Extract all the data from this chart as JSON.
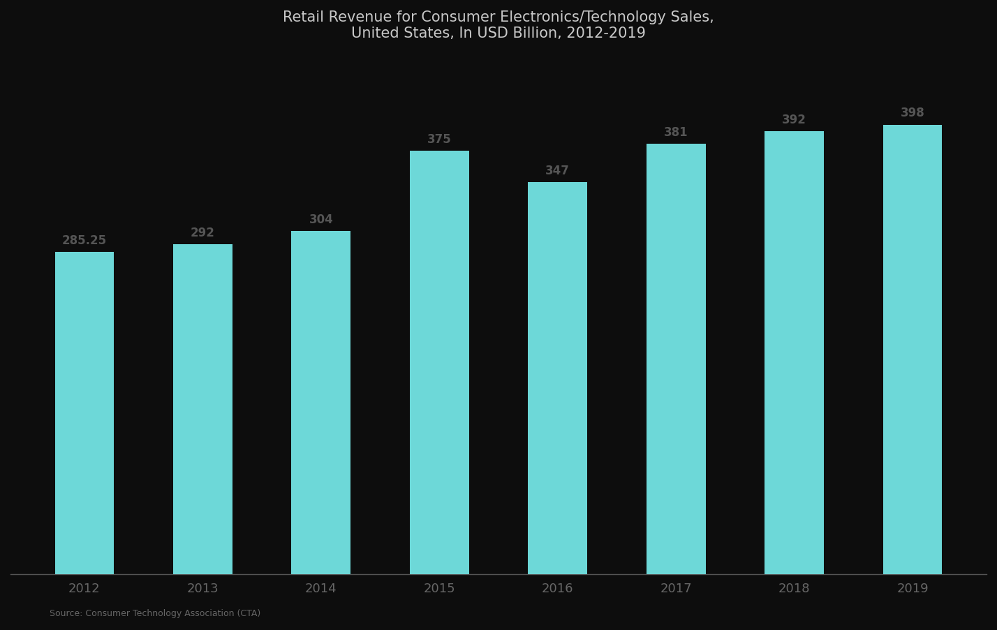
{
  "title_line1": "Retail Revenue for Consumer Electronics/Technology Sales,",
  "title_line2": "United States, In USD Billion, 2012-2019",
  "years": [
    "2012",
    "2013",
    "2014",
    "2015",
    "2016",
    "2017",
    "2018",
    "2019"
  ],
  "values": [
    285.25,
    292,
    304,
    375,
    347,
    381,
    392,
    398
  ],
  "bar_color": "#6DD8D8",
  "background_color": "#0d0d0d",
  "title_color": "#c8c8c8",
  "label_color": "#555555",
  "axis_color": "#666666",
  "source_text": "Source: Consumer Technology Association (CTA)",
  "bar_labels": [
    "285.25",
    "292",
    "304",
    "375",
    "347",
    "381",
    "392",
    "398"
  ],
  "ylim": [
    0,
    460
  ],
  "bar_width": 0.5
}
